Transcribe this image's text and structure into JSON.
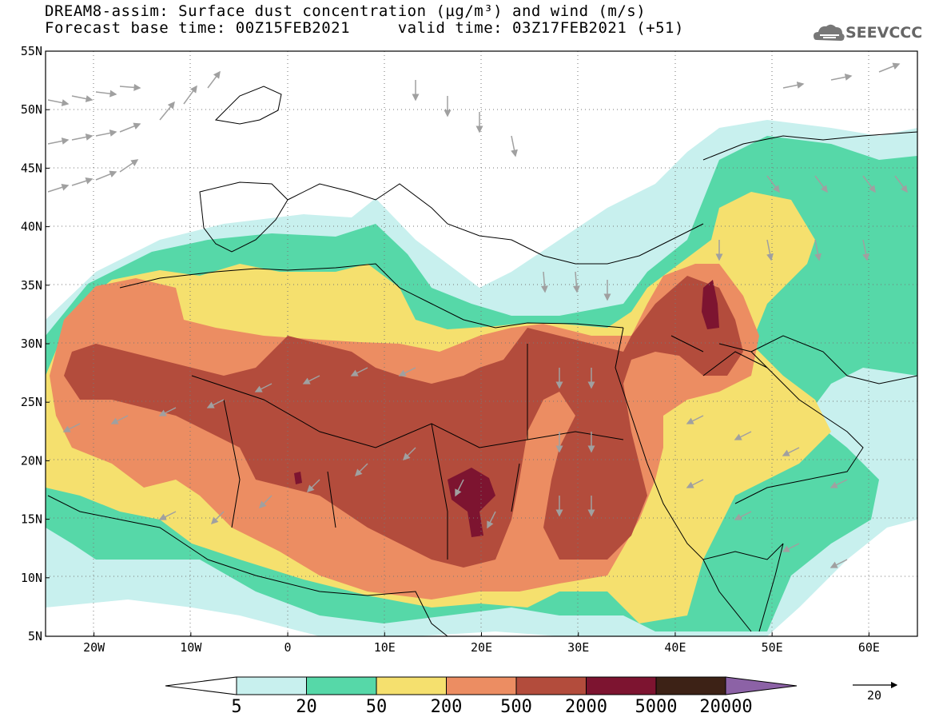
{
  "title": {
    "line1": "DREAM8-assim: Surface dust concentration (µg/m³) and wind (m/s)",
    "line2": "Forecast base time: 00Z15FEB2021     valid time: 03Z17FEB2021 (+51)"
  },
  "logo": {
    "text": "SEEVCCC",
    "icon": "cloud-logo-icon"
  },
  "map": {
    "lon_range": [
      -25,
      65
    ],
    "lat_range": [
      5,
      55
    ],
    "lat_ticks": [
      "5N",
      "10N",
      "15N",
      "20N",
      "25N",
      "30N",
      "35N",
      "40N",
      "45N",
      "50N",
      "55N"
    ],
    "lon_ticks": [
      "20W",
      "10W",
      "0",
      "10E",
      "20E",
      "30E",
      "40E",
      "50E",
      "60E"
    ],
    "land_color": "#ffffff",
    "border_color": "#000000",
    "grid": "dotted"
  },
  "colorbar": {
    "labels": [
      "5",
      "20",
      "50",
      "200",
      "500",
      "2000",
      "5000",
      "20000"
    ],
    "colors": [
      "#c8f0ee",
      "#56d8a8",
      "#f5e06e",
      "#ec8d62",
      "#b34c3c",
      "#7d1430",
      "#3d2216",
      "#8c62a6"
    ],
    "below_color": "#ffffff"
  },
  "wind_reference": {
    "label": "20"
  }
}
